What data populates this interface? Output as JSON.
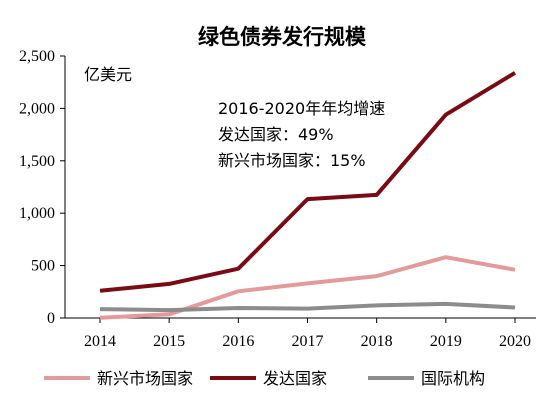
{
  "chart_data": {
    "type": "line",
    "title": "绿色债券发行规模",
    "ylabel": "亿美元",
    "xlabel": "",
    "ylim": [
      0,
      2500
    ],
    "yticks": [
      "0",
      "500",
      "1,000",
      "1,500",
      "2,000",
      "2,500"
    ],
    "categories": [
      "2014",
      "2015",
      "2016",
      "2017",
      "2018",
      "2019",
      "2020"
    ],
    "series": [
      {
        "name": "新兴市场国家",
        "color": "#E4999A",
        "values": [
          2,
          35,
          255,
          330,
          400,
          580,
          460
        ]
      },
      {
        "name": "发达国家",
        "color": "#7A0A14",
        "values": [
          260,
          325,
          470,
          1135,
          1175,
          1940,
          2340
        ]
      },
      {
        "name": "国际机构",
        "color": "#8C8C8C",
        "values": [
          85,
          75,
          95,
          90,
          120,
          135,
          100
        ]
      }
    ],
    "annotations": [
      "2016-2020年年均增速",
      "发达国家：49%",
      "新兴市场国家：15%"
    ],
    "legend_position": "bottom",
    "grid": false
  }
}
